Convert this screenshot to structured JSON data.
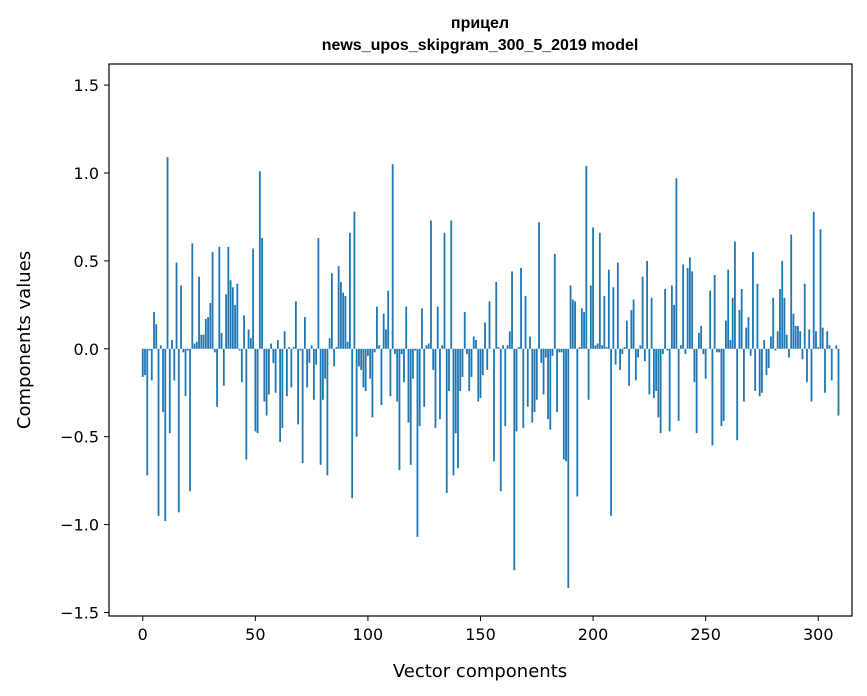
{
  "chart_data": {
    "type": "bar",
    "title": "прицел",
    "subtitle": "news_upos_skipgram_300_5_2019 model",
    "xlabel": "Vector components",
    "ylabel": "Components values",
    "xlim": [
      -15,
      315
    ],
    "ylim": [
      -1.52,
      1.62
    ],
    "x_ticks": [
      0,
      50,
      100,
      150,
      200,
      250,
      300
    ],
    "x_tick_labels": [
      "0",
      "50",
      "100",
      "150",
      "200",
      "250",
      "300"
    ],
    "y_ticks": [
      -1.5,
      -1.0,
      -0.5,
      0.0,
      0.5,
      1.0,
      1.5
    ],
    "y_tick_labels": [
      "−1.5",
      "−1.0",
      "−0.5",
      "0.0",
      "0.5",
      "1.0",
      "1.5"
    ],
    "grid": false,
    "bar_color": "#1f77b4",
    "values": [
      -0.16,
      -0.15,
      -0.72,
      -0.01,
      -0.18,
      0.21,
      0.14,
      -0.95,
      0.02,
      -0.36,
      -0.98,
      1.09,
      -0.48,
      0.05,
      -0.18,
      0.49,
      -0.93,
      0.36,
      -0.02,
      -0.27,
      -0.01,
      -0.81,
      0.6,
      0.03,
      0.04,
      0.41,
      0.08,
      0.08,
      0.17,
      0.18,
      0.26,
      0.55,
      -0.02,
      -0.33,
      0.58,
      0.09,
      -0.21,
      0.31,
      0.58,
      0.39,
      0.35,
      0.25,
      0.37,
      -0.01,
      -0.19,
      0.19,
      -0.63,
      0.11,
      0.06,
      0.57,
      -0.47,
      -0.48,
      1.01,
      0.63,
      -0.3,
      -0.38,
      -0.26,
      0.03,
      -0.08,
      -0.25,
      0.05,
      -0.53,
      -0.45,
      0.1,
      -0.27,
      0.01,
      -0.22,
      0.01,
      0.27,
      -0.43,
      -0.01,
      -0.65,
      0.18,
      -0.22,
      -0.08,
      0.02,
      -0.29,
      -0.09,
      0.63,
      -0.66,
      -0.29,
      -0.17,
      -0.72,
      0.06,
      0.43,
      -0.1,
      0.01,
      0.47,
      0.38,
      0.32,
      0.3,
      0.04,
      0.66,
      -0.85,
      0.78,
      -0.5,
      -0.1,
      -0.12,
      -0.22,
      -0.24,
      -0.04,
      -0.17,
      -0.39,
      -0.02,
      0.24,
      0.02,
      -0.32,
      0.2,
      0.11,
      0.33,
      -0.27,
      1.05,
      -0.03,
      -0.3,
      -0.69,
      -0.03,
      -0.19,
      0.24,
      -0.42,
      -0.66,
      -0.17,
      -0.01,
      -1.07,
      -0.44,
      0.23,
      -0.33,
      0.02,
      0.03,
      0.73,
      -0.12,
      -0.45,
      0.24,
      -0.4,
      0.02,
      0.66,
      -0.82,
      -0.24,
      0.73,
      -0.72,
      -0.48,
      -0.68,
      -0.24,
      -0.16,
      0.21,
      -0.03,
      -0.24,
      -0.16,
      0.07,
      0.05,
      -0.3,
      -0.28,
      -0.15,
      0.15,
      -0.12,
      0.27,
      0.0,
      -0.64,
      0.38,
      0.01,
      -0.81,
      0.02,
      -0.44,
      0.02,
      0.1,
      0.44,
      -1.26,
      -0.47,
      0.01,
      0.46,
      -0.45,
      0.3,
      -0.33,
      0.07,
      -0.42,
      -0.36,
      -0.29,
      0.72,
      -0.08,
      -0.26,
      -0.05,
      -0.4,
      -0.46,
      -0.04,
      0.54,
      -0.36,
      -0.02,
      -0.02,
      -0.63,
      -0.64,
      -1.36,
      0.36,
      0.28,
      0.27,
      -0.84,
      0.01,
      0.23,
      0.21,
      1.04,
      -0.29,
      0.36,
      0.69,
      0.02,
      0.03,
      0.66,
      0.02,
      0.3,
      0.01,
      0.45,
      -0.95,
      0.35,
      -0.09,
      0.49,
      -0.12,
      -0.03,
      0.01,
      0.16,
      -0.21,
      0.22,
      0.28,
      -0.18,
      -0.05,
      0.02,
      0.41,
      -0.07,
      0.5,
      -0.26,
      0.29,
      -0.28,
      -0.24,
      -0.39,
      -0.48,
      -0.03,
      0.34,
      -0.01,
      -0.47,
      0.36,
      0.25,
      0.97,
      -0.41,
      0.02,
      0.48,
      -0.03,
      0.46,
      0.52,
      0.44,
      -0.19,
      -0.48,
      0.09,
      0.13,
      -0.03,
      -0.17,
      0.0,
      0.33,
      -0.55,
      0.42,
      -0.02,
      -0.02,
      -0.44,
      -0.41,
      0.16,
      0.45,
      0.05,
      0.29,
      0.61,
      -0.52,
      0.22,
      0.34,
      -0.3,
      0.12,
      0.18,
      -0.04,
      0.55,
      -0.24,
      0.37,
      -0.27,
      -0.25,
      0.05,
      -0.15,
      -0.11,
      0.07,
      0.29,
      -0.01,
      0.1,
      0.34,
      0.5,
      0.29,
      0.08,
      -0.05,
      0.65,
      0.2,
      0.13,
      0.13,
      0.1,
      -0.06,
      0.37,
      -0.19,
      0.11,
      -0.3,
      0.78,
      0.1,
      0.01,
      0.68,
      0.12,
      -0.25,
      0.1,
      0.02,
      -0.18,
      0.0,
      0.02,
      -0.38
    ]
  }
}
